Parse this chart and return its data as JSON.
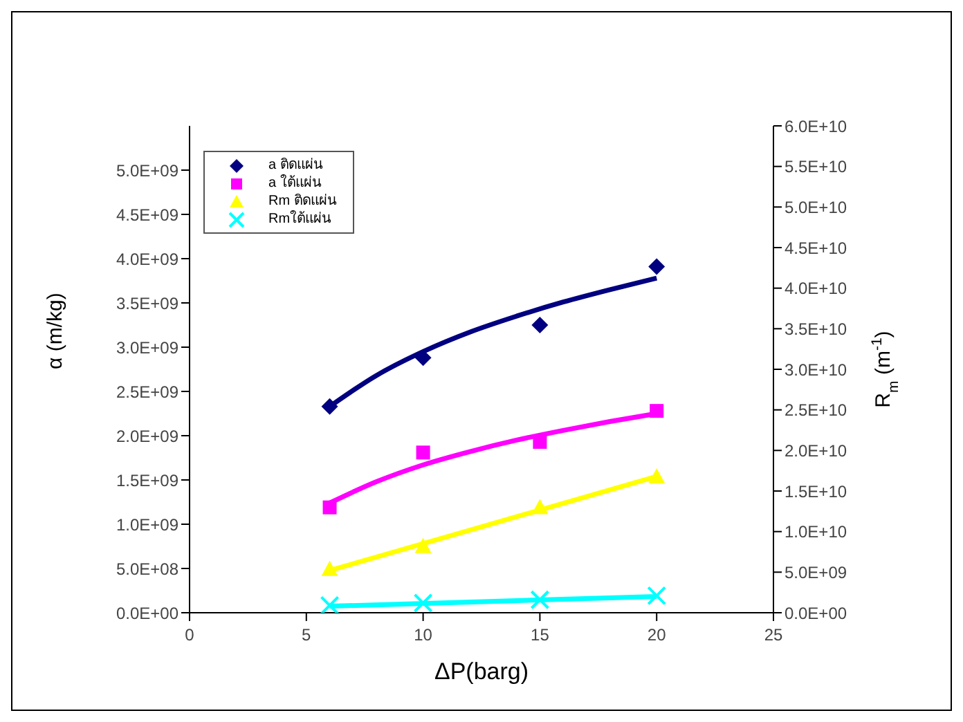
{
  "chart_data": {
    "type": "scatter",
    "xlabel": "ΔP(barg)",
    "ylabel": "α (m/kg)",
    "y2label": "R$_{m}$ (m$^{-1}$)",
    "xlim": [
      0,
      25
    ],
    "xticks": [
      0,
      5,
      10,
      15,
      20,
      25
    ],
    "ylim": [
      0,
      5500000000
    ],
    "yticks": [
      {
        "value": 0,
        "label": "0.0E+00"
      },
      {
        "value": 500000000,
        "label": "5.0E+08"
      },
      {
        "value": 1000000000,
        "label": "1.0E+09"
      },
      {
        "value": 1500000000,
        "label": "1.5E+09"
      },
      {
        "value": 2000000000,
        "label": "2.0E+09"
      },
      {
        "value": 2500000000,
        "label": "2.5E+09"
      },
      {
        "value": 3000000000,
        "label": "3.0E+09"
      },
      {
        "value": 3500000000,
        "label": "3.5E+09"
      },
      {
        "value": 4000000000,
        "label": "4.0E+09"
      },
      {
        "value": 4500000000,
        "label": "4.5E+09"
      },
      {
        "value": 5000000000,
        "label": "5.0E+09"
      }
    ],
    "y2lim": [
      0,
      60000000000
    ],
    "y2ticks": [
      {
        "value": 0,
        "label": "0.0E+00"
      },
      {
        "value": 5000000000,
        "label": "5.0E+09"
      },
      {
        "value": 10000000000,
        "label": "1.0E+10"
      },
      {
        "value": 15000000000,
        "label": "1.5E+10"
      },
      {
        "value": 20000000000,
        "label": "2.0E+10"
      },
      {
        "value": 25000000000,
        "label": "2.5E+10"
      },
      {
        "value": 30000000000,
        "label": "3.0E+10"
      },
      {
        "value": 35000000000,
        "label": "3.5E+10"
      },
      {
        "value": 40000000000,
        "label": "4.0E+10"
      },
      {
        "value": 45000000000,
        "label": "4.5E+10"
      },
      {
        "value": 50000000000,
        "label": "5.0E+10"
      },
      {
        "value": 55000000000,
        "label": "5.5E+10"
      },
      {
        "value": 60000000000,
        "label": "6.0E+10"
      }
    ],
    "x": [
      6,
      10,
      15,
      20
    ],
    "grid": false,
    "legend": "top left",
    "series": [
      {
        "name": "a ติดแผ่น",
        "color": "#000080",
        "marker": "diamond",
        "values": [
          2330000000,
          2880000000,
          3250000000,
          3910000000
        ]
      },
      {
        "name": "a ใต้แผ่น",
        "color": "#ff00ff",
        "marker": "square",
        "values": [
          1190000000,
          1810000000,
          1930000000,
          2280000000
        ]
      },
      {
        "name": "Rm ติดแผ่น",
        "color": "#ffff00",
        "marker": "triangle",
        "axis": "y2",
        "values": [
          5400000000,
          8200000000,
          13000000000,
          16800000000
        ]
      },
      {
        "name": "Rmใต้แผ่น",
        "color": "#00ffff",
        "marker": "cross",
        "axis": "y2",
        "values": [
          900000000,
          1200000000,
          1600000000,
          2100000000
        ]
      },
      {
        "type": "line",
        "color": "#000080",
        "marker": "none",
        "x": [
          6,
          8,
          10,
          12,
          14,
          16,
          18,
          20
        ],
        "values": [
          2330000000,
          2680000000,
          2950000000,
          3170000000,
          3350000000,
          3510000000,
          3650000000,
          3780000000
        ]
      },
      {
        "type": "line",
        "color": "#ff00ff",
        "marker": "none",
        "x": [
          6,
          8,
          10,
          12,
          14,
          16,
          18,
          20
        ],
        "values": [
          1240000000,
          1480000000,
          1670000000,
          1820000000,
          1950000000,
          2060000000,
          2160000000,
          2250000000
        ]
      },
      {
        "type": "line",
        "color": "#ffff00",
        "marker": "none",
        "axis": "y2",
        "x": [
          6,
          20
        ],
        "values": [
          5200000000,
          16800000000
        ]
      },
      {
        "type": "line",
        "color": "#00ffff",
        "marker": "none",
        "axis": "y2",
        "x": [
          6,
          20
        ],
        "values": [
          800000000,
          2000000000
        ]
      }
    ]
  }
}
